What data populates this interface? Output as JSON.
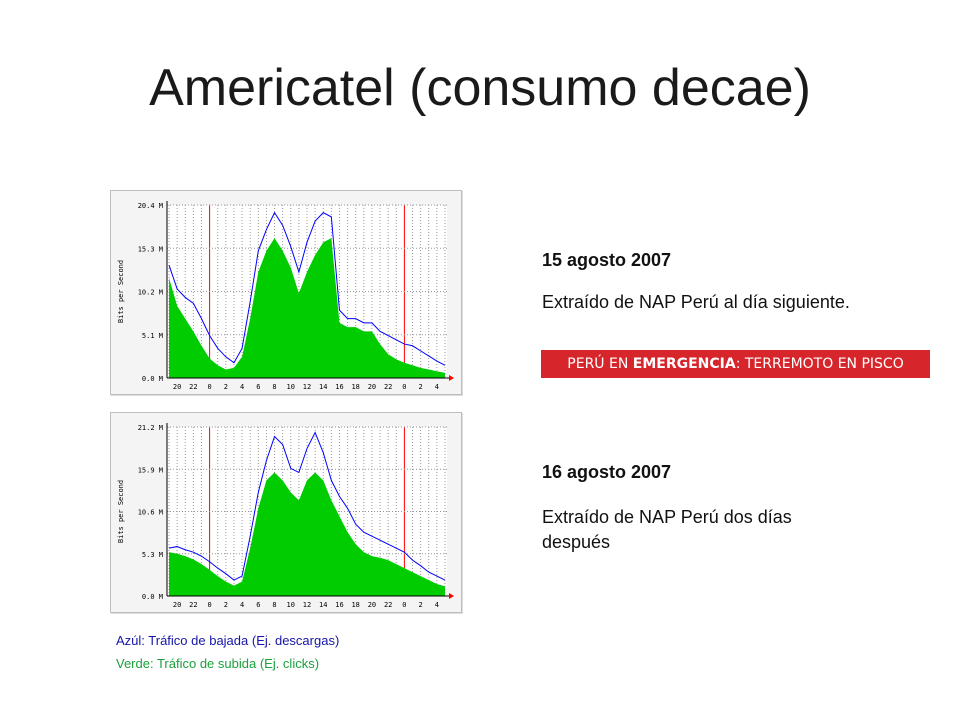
{
  "slide": {
    "title": "Americatel (consumo decae)",
    "entries": [
      {
        "date": "15 agosto 2007",
        "description": "Extraído de NAP Perú al día siguiente."
      },
      {
        "date": "16 agosto 2007",
        "description": "Extraído de NAP Perú dos días después"
      }
    ],
    "banner": {
      "prefix": "PERÚ EN ",
      "emphasis": "EMERGENCIA",
      "suffix": ": TERREMOTO EN PISCO",
      "color": "#d7262b"
    },
    "legend": {
      "blue": "Azúl: Tráfico de bajada (Ej. descargas)",
      "green": "Verde: Tráfico de subida (Ej. clicks)"
    }
  },
  "colors": {
    "incoming": "#00cc00",
    "outgoing": "#0000ff",
    "midnight": "#ff0000",
    "grid": "#999999"
  },
  "chart_data": [
    {
      "type": "area",
      "ylabel": "Bits per Second",
      "yticks": [
        "0.0 M",
        "5.1 M",
        "10.2 M",
        "15.3 M",
        "20.4 M"
      ],
      "ylim": [
        0,
        20.4
      ],
      "xticks": [
        "20",
        "22",
        "0",
        "2",
        "4",
        "6",
        "8",
        "10",
        "12",
        "14",
        "16",
        "18",
        "20",
        "22",
        "0",
        "2",
        "4"
      ],
      "x_hours": [
        19,
        20,
        21,
        22,
        23,
        24,
        25,
        26,
        27,
        28,
        29,
        30,
        31,
        32,
        33,
        34,
        35,
        36,
        37,
        38,
        39,
        40,
        41,
        42,
        43,
        44,
        45,
        46,
        47,
        48,
        49,
        50,
        51,
        52,
        53
      ],
      "series": [
        {
          "values": [
            11.8,
            8.5,
            7.0,
            5.5,
            3.8,
            2.3,
            1.5,
            1.0,
            1.2,
            2.5,
            7.0,
            12.5,
            15.0,
            16.5,
            15.0,
            13.0,
            10.0,
            12.5,
            14.5,
            16.0,
            16.5,
            6.5,
            6.0,
            6.0,
            5.5,
            5.5,
            4.0,
            2.8,
            2.2,
            1.8,
            1.5,
            1.2,
            1.0,
            0.8,
            0.6
          ]
        },
        {
          "values": [
            13.3,
            10.5,
            9.5,
            8.8,
            7.0,
            5.0,
            3.5,
            2.5,
            1.8,
            3.5,
            9.0,
            15.0,
            17.5,
            19.5,
            18.0,
            15.5,
            12.5,
            16.0,
            18.5,
            19.5,
            19.0,
            8.0,
            7.0,
            7.0,
            6.5,
            6.5,
            5.5,
            5.0,
            4.5,
            4.0,
            3.8,
            3.2,
            2.6,
            2.0,
            1.5
          ]
        }
      ]
    },
    {
      "type": "area",
      "ylabel": "Bits per Second",
      "yticks": [
        "0.0 M",
        "5.3 M",
        "10.6 M",
        "15.9 M",
        "21.2 M"
      ],
      "ylim": [
        0,
        21.2
      ],
      "xticks": [
        "20",
        "22",
        "0",
        "2",
        "4",
        "6",
        "8",
        "10",
        "12",
        "14",
        "16",
        "18",
        "20",
        "22",
        "0",
        "2",
        "4"
      ],
      "x_hours": [
        19,
        20,
        21,
        22,
        23,
        24,
        25,
        26,
        27,
        28,
        29,
        30,
        31,
        32,
        33,
        34,
        35,
        36,
        37,
        38,
        39,
        40,
        41,
        42,
        43,
        44,
        45,
        46,
        47,
        48,
        49,
        50,
        51,
        52,
        53
      ],
      "series": [
        {
          "values": [
            5.5,
            5.3,
            5.0,
            4.6,
            4.0,
            3.3,
            2.5,
            1.8,
            1.3,
            1.8,
            6.0,
            11.0,
            14.5,
            15.5,
            14.5,
            13.0,
            12.0,
            14.5,
            15.5,
            14.5,
            12.0,
            10.0,
            8.0,
            6.5,
            5.5,
            5.0,
            4.8,
            4.5,
            4.0,
            3.5,
            3.0,
            2.5,
            2.0,
            1.5,
            1.2
          ]
        },
        {
          "values": [
            6.0,
            6.2,
            5.8,
            5.5,
            5.0,
            4.3,
            3.5,
            2.8,
            2.0,
            2.5,
            7.5,
            13.0,
            17.0,
            20.0,
            19.0,
            16.0,
            15.5,
            18.5,
            20.5,
            18.0,
            14.5,
            12.5,
            11.0,
            9.0,
            8.0,
            7.5,
            7.0,
            6.5,
            6.0,
            5.5,
            4.5,
            3.8,
            3.0,
            2.5,
            2.0
          ]
        }
      ]
    }
  ]
}
